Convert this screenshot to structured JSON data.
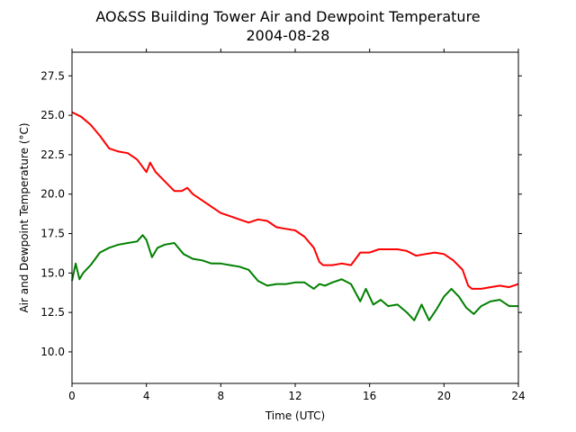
{
  "chart_data": {
    "type": "line",
    "title": "AO&SS Building Tower Air and Dewpoint Temperature",
    "subtitle": "2004-08-28",
    "xlabel": "Time (UTC)",
    "ylabel": "Air and Dewpoint Temperature (°C)",
    "xlim": [
      0,
      24
    ],
    "ylim": [
      8.0,
      29.0
    ],
    "xticks": [
      0,
      4,
      8,
      12,
      16,
      20,
      24
    ],
    "xtick_labels": [
      "0",
      "4",
      "8",
      "12",
      "16",
      "20",
      "24"
    ],
    "yticks": [
      10.0,
      12.5,
      15.0,
      17.5,
      20.0,
      22.5,
      25.0,
      27.5
    ],
    "ytick_labels": [
      "10.0",
      "12.5",
      "15.0",
      "17.5",
      "20.0",
      "22.5",
      "25.0",
      "27.5"
    ],
    "grid": false,
    "series": [
      {
        "color": "#ff0000",
        "x": [
          0,
          0.5,
          1.0,
          1.5,
          2.0,
          2.5,
          3.0,
          3.5,
          4.0,
          4.2,
          4.5,
          5.0,
          5.5,
          5.9,
          6.2,
          6.5,
          7.0,
          7.5,
          8.0,
          8.5,
          9.0,
          9.5,
          10.0,
          10.5,
          11.0,
          11.5,
          12.0,
          12.5,
          13.0,
          13.3,
          13.5,
          14.0,
          14.5,
          15.0,
          15.5,
          16.0,
          16.5,
          17.0,
          17.5,
          18.0,
          18.5,
          19.0,
          19.5,
          20.0,
          20.5,
          21.0,
          21.3,
          21.5,
          22.0,
          22.5,
          23.0,
          23.5,
          24.0
        ],
        "y": [
          25.2,
          24.9,
          24.4,
          23.7,
          22.9,
          22.7,
          22.6,
          22.2,
          21.4,
          22.0,
          21.4,
          20.8,
          20.2,
          20.2,
          20.4,
          20.0,
          19.6,
          19.2,
          18.8,
          18.6,
          18.4,
          18.2,
          18.4,
          18.3,
          17.9,
          17.8,
          17.7,
          17.3,
          16.6,
          15.7,
          15.5,
          15.5,
          15.6,
          15.5,
          16.3,
          16.3,
          16.5,
          16.5,
          16.5,
          16.4,
          16.1,
          16.2,
          16.3,
          16.2,
          15.8,
          15.2,
          14.2,
          14.0,
          14.0,
          14.1,
          14.2,
          14.1,
          14.3
        ]
      },
      {
        "color": "#008000",
        "x": [
          0,
          0.2,
          0.4,
          0.6,
          1.0,
          1.5,
          2.0,
          2.5,
          3.0,
          3.5,
          3.8,
          4.0,
          4.3,
          4.6,
          5.0,
          5.5,
          6.0,
          6.5,
          7.0,
          7.5,
          8.0,
          8.5,
          9.0,
          9.5,
          10.0,
          10.5,
          11.0,
          11.5,
          12.0,
          12.5,
          13.0,
          13.3,
          13.6,
          14.0,
          14.5,
          15.0,
          15.5,
          15.8,
          16.2,
          16.6,
          17.0,
          17.5,
          18.0,
          18.4,
          18.8,
          19.2,
          19.6,
          20.0,
          20.4,
          20.8,
          21.2,
          21.6,
          22.0,
          22.5,
          23.0,
          23.5,
          24.0
        ],
        "y": [
          14.5,
          15.6,
          14.6,
          15.0,
          15.5,
          16.3,
          16.6,
          16.8,
          16.9,
          17.0,
          17.4,
          17.1,
          16.0,
          16.6,
          16.8,
          16.9,
          16.2,
          15.9,
          15.8,
          15.6,
          15.6,
          15.5,
          15.4,
          15.2,
          14.5,
          14.2,
          14.3,
          14.3,
          14.4,
          14.4,
          14.0,
          14.3,
          14.2,
          14.4,
          14.6,
          14.3,
          13.2,
          14.0,
          13.0,
          13.3,
          12.9,
          13.0,
          12.5,
          12.0,
          13.0,
          12.0,
          12.7,
          13.5,
          14.0,
          13.5,
          12.8,
          12.4,
          12.9,
          13.2,
          13.3,
          12.9,
          12.9
        ]
      }
    ]
  }
}
